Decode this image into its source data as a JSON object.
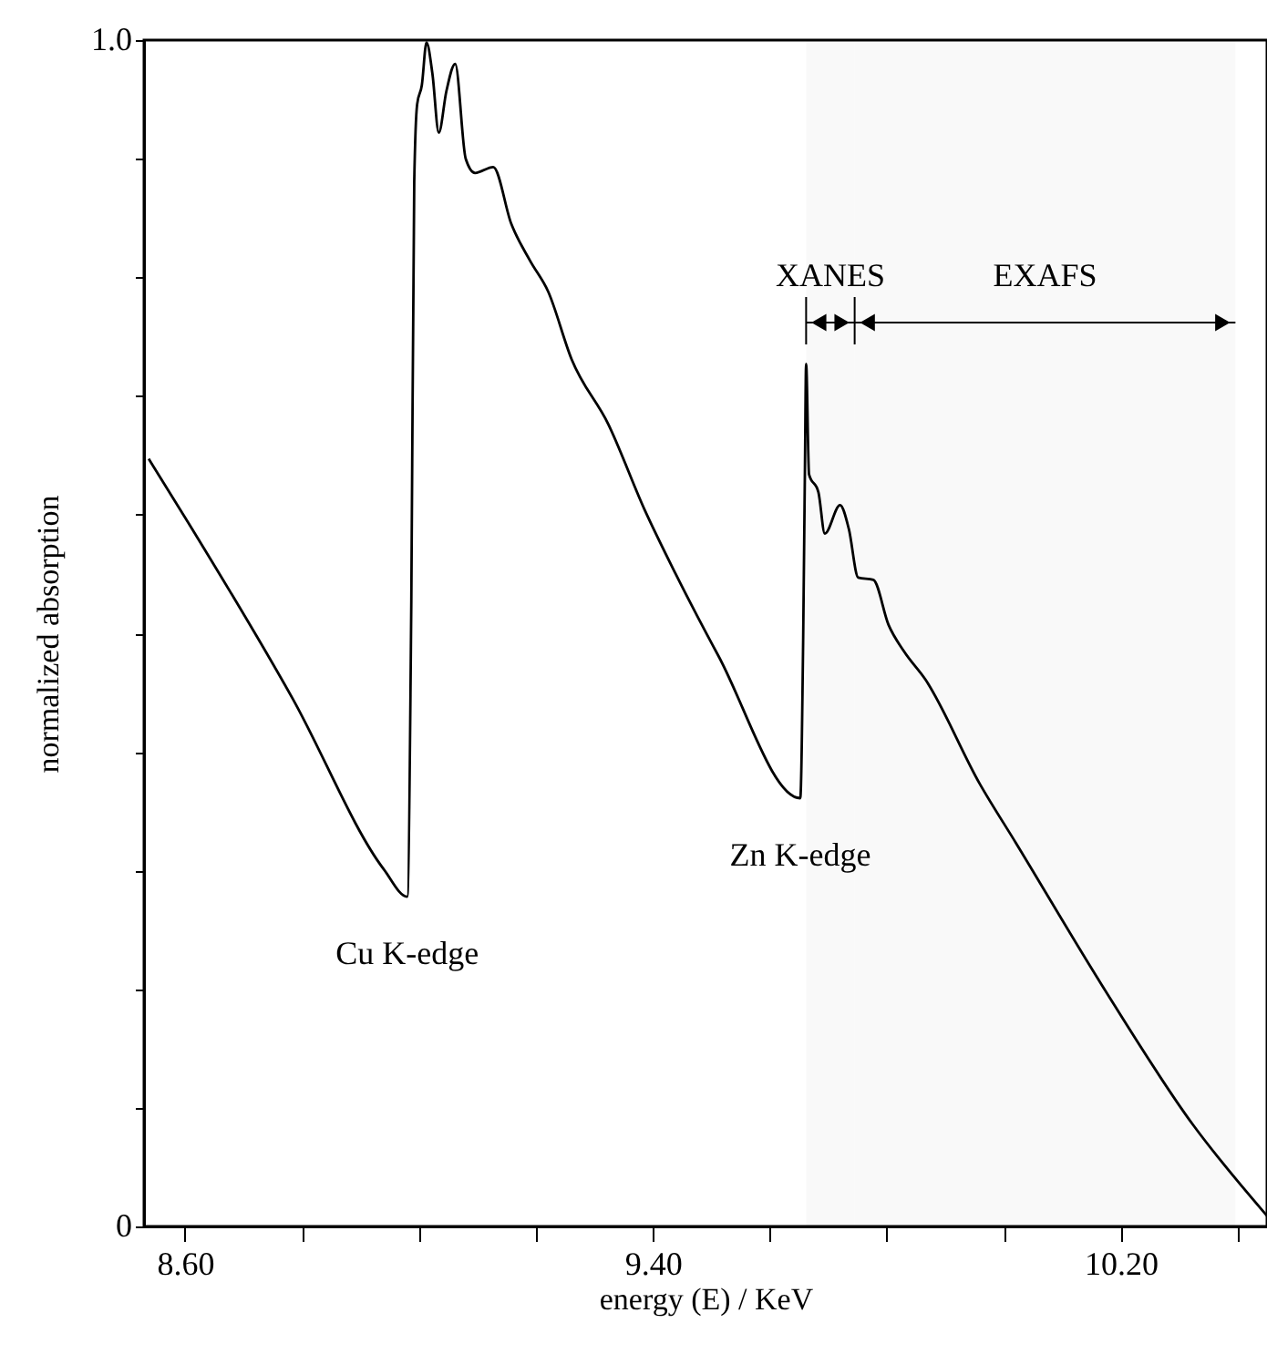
{
  "chart_data": {
    "type": "line",
    "xlabel": "energy (E) / KeV",
    "ylabel": "normalized absorption",
    "xlim": [
      8.53,
      10.45
    ],
    "ylim": [
      0,
      1.0
    ],
    "xticks": [
      {
        "value": 8.6,
        "label": "8.60"
      },
      {
        "value": 8.8,
        "label": null
      },
      {
        "value": 9.0,
        "label": null
      },
      {
        "value": 9.2,
        "label": null
      },
      {
        "value": 9.4,
        "label": "9.40"
      },
      {
        "value": 9.6,
        "label": null
      },
      {
        "value": 9.8,
        "label": null
      },
      {
        "value": 10.0,
        "label": null
      },
      {
        "value": 10.2,
        "label": "10.20"
      },
      {
        "value": 10.4,
        "label": null
      }
    ],
    "yticks": [
      0,
      {
        "value": 0.1,
        "label": null
      },
      {
        "value": 0.2,
        "label": null
      },
      {
        "value": 0.3,
        "label": null
      },
      {
        "value": 0.4,
        "label": null
      },
      {
        "value": 0.5,
        "label": null
      },
      {
        "value": 0.6,
        "label": null
      },
      {
        "value": 0.7,
        "label": null
      },
      {
        "value": 0.8,
        "label": null
      },
      {
        "value": 0.9,
        "label": null
      },
      {
        "value": 1.0,
        "label": "1.0"
      }
    ],
    "grid": false,
    "marker": "none",
    "line_style": "solid",
    "series": [
      {
        "color": "#000000",
        "x": [
          8.538,
          8.606,
          8.784,
          8.94,
          8.98,
          8.987,
          8.992,
          8.997,
          9.005,
          9.013,
          9.023,
          9.034,
          9.047,
          9.062,
          9.08,
          9.096,
          9.127,
          9.158,
          9.19,
          9.221,
          9.261,
          9.324,
          9.386,
          9.439,
          9.512,
          9.652,
          9.657,
          9.66,
          9.662,
          9.667,
          9.683,
          9.694,
          9.72,
          9.735,
          9.751,
          9.777,
          9.803,
          9.829,
          9.866,
          9.959,
          10.021,
          10.167,
          10.323,
          10.45
        ],
        "values": [
          0.647,
          0.593,
          0.445,
          0.301,
          0.278,
          0.527,
          0.88,
          0.946,
          0.962,
          0.998,
          0.972,
          0.922,
          0.957,
          0.98,
          0.9,
          0.888,
          0.893,
          0.845,
          0.814,
          0.788,
          0.731,
          0.676,
          0.604,
          0.55,
          0.481,
          0.361,
          0.496,
          0.64,
          0.727,
          0.634,
          0.619,
          0.584,
          0.608,
          0.588,
          0.547,
          0.545,
          0.507,
          0.485,
          0.461,
          0.373,
          0.323,
          0.204,
          0.086,
          0.009
        ]
      }
    ],
    "annotations": [
      {
        "text": "Cu K-edge",
        "x": 8.98,
        "y": 0.278
      },
      {
        "text": "Zn K-edge",
        "x": 9.652,
        "y": 0.361
      }
    ],
    "bands": [
      {
        "axis": "x",
        "from": 9.662,
        "to": 9.745,
        "label": "XANES",
        "color": "#000000"
      },
      {
        "axis": "x",
        "from": 9.745,
        "to": 10.396,
        "label": "EXAFS",
        "color": "#000000"
      }
    ]
  }
}
